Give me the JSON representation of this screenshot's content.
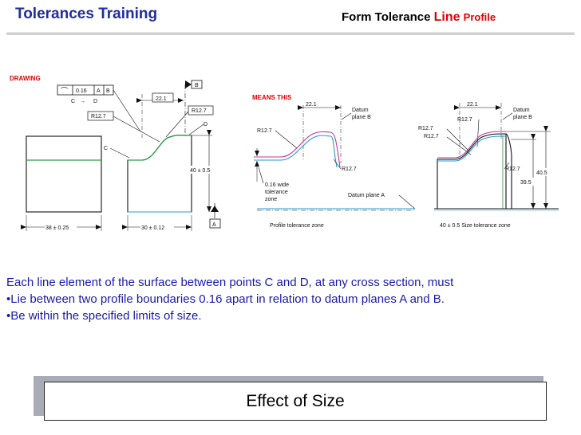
{
  "header": {
    "left_title": "Tolerances Training",
    "right_title_prefix": "Form Tolerance",
    "right_title_line": "Line",
    "right_title_profile": "Profile"
  },
  "figure": {
    "drawing": {
      "label": "DRAWING",
      "frame_symbol": "⌒",
      "frame_value": "0.16",
      "frame_datum_a": "A",
      "frame_datum_b": "B",
      "point_c_top": "C",
      "arrow_between": "→",
      "point_d_top": "D",
      "datum_b_flag": "B",
      "dim_22": "22.1",
      "radius_left": "R12.7",
      "radius_right": "R12.7",
      "point_d": "D",
      "point_c": "C",
      "dim_height": "40 ± 0.5",
      "dim_left_width": "38 ± 0.25",
      "dim_right_width": "30 ± 0.12",
      "datum_a_flag": "A"
    },
    "means_this": {
      "label": "MEANS THIS",
      "dim_22": "22.1",
      "datum_plane_b_1": "Datum",
      "datum_plane_b_2": "plane B",
      "radius_upper": "R12.7",
      "radius_lower": "R12.7",
      "zone_1": "0.16 wide",
      "zone_2": "tolerance",
      "zone_3": "zone",
      "datum_plane_a": "Datum plane A",
      "caption": "Profile tolerance zone"
    },
    "size_zone": {
      "dim_22": "22.1",
      "datum_plane_b_1": "Datum",
      "datum_plane_b_2": "plane B",
      "radius_1": "R12.7",
      "radius_2": "R12.7",
      "radius_3": "R12.7",
      "radius_4": "R12.7",
      "dim_40_5": "40.5",
      "dim_39_5": "39.5",
      "caption": "40 ± 0.5 Size tolerance zone"
    }
  },
  "body": {
    "line1": "Each line element of the surface between points C and D, at any cross section, must",
    "line2": "•Lie between two profile boundaries 0.16 apart in relation to datum planes A and B.",
    "line3": "•Be within the specified limits of size."
  },
  "banner": {
    "label": "Effect of Size"
  },
  "colors": {
    "title_blue": "#1f2f9a",
    "accent_red": "#e00000",
    "body_blue": "#1a1aa8",
    "surface_green": "#2e9a4a",
    "zone_magenta": "#c0389a",
    "zone_cyan": "#2a9ad0"
  }
}
